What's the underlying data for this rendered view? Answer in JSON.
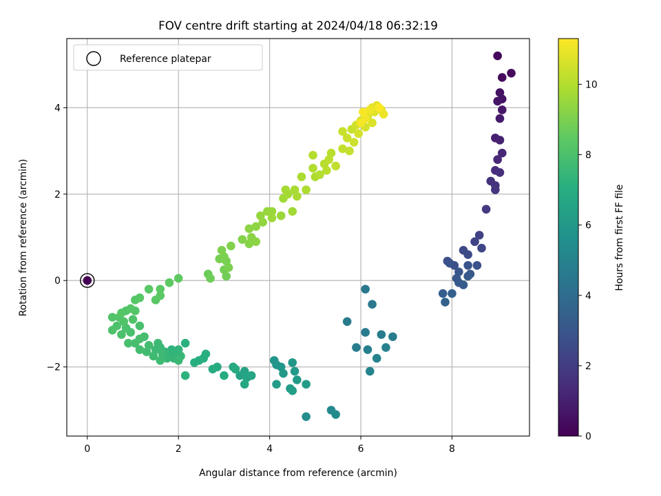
{
  "chart_data": {
    "type": "scatter",
    "title": "FOV centre drift starting at 2024/04/18 06:32:19",
    "xlabel": "Angular distance from reference (arcmin)",
    "ylabel": "Rotation from reference (arcmin)",
    "xlim": [
      -0.45,
      9.7
    ],
    "ylim": [
      -3.6,
      5.6
    ],
    "xticks": [
      0,
      2,
      4,
      6,
      8
    ],
    "yticks": [
      -2,
      0,
      2,
      4
    ],
    "xtick_labels": [
      "0",
      "2",
      "4",
      "6",
      "8"
    ],
    "ytick_labels": [
      "−2",
      "0",
      "2",
      "4"
    ],
    "grid": true,
    "legend": {
      "position": "top-left",
      "label": "Reference platepar"
    },
    "colorbar": {
      "label": "Hours from first FF file",
      "colormap": "viridis",
      "range": [
        0,
        11.3
      ],
      "ticks": [
        0,
        2,
        4,
        6,
        8,
        10
      ],
      "tick_labels": [
        "0",
        "2",
        "4",
        "6",
        "8",
        "10"
      ]
    },
    "reference_point": {
      "x": 0,
      "y": 0,
      "hours": 0
    },
    "points": [
      [
        9.0,
        5.2,
        0.2
      ],
      [
        9.3,
        4.8,
        0.3
      ],
      [
        9.1,
        4.7,
        0.35
      ],
      [
        9.05,
        4.35,
        0.5
      ],
      [
        9.1,
        4.2,
        0.6
      ],
      [
        9.0,
        4.15,
        0.65
      ],
      [
        9.1,
        3.95,
        0.75
      ],
      [
        9.05,
        3.75,
        0.85
      ],
      [
        8.95,
        3.3,
        1.0
      ],
      [
        9.05,
        3.25,
        1.05
      ],
      [
        9.1,
        2.95,
        1.2
      ],
      [
        9.0,
        2.8,
        1.3
      ],
      [
        8.95,
        2.55,
        1.4
      ],
      [
        9.05,
        2.5,
        1.5
      ],
      [
        8.85,
        2.3,
        1.6
      ],
      [
        8.95,
        2.2,
        1.65
      ],
      [
        8.95,
        2.1,
        1.7
      ],
      [
        8.75,
        1.65,
        1.9
      ],
      [
        8.6,
        1.05,
        2.2
      ],
      [
        8.5,
        0.9,
        2.3
      ],
      [
        8.65,
        0.75,
        2.35
      ],
      [
        8.25,
        0.7,
        2.5
      ],
      [
        8.35,
        0.6,
        2.55
      ],
      [
        7.9,
        0.45,
        2.7
      ],
      [
        8.05,
        0.35,
        2.75
      ],
      [
        8.55,
        0.35,
        2.8
      ],
      [
        7.95,
        0.4,
        2.85
      ],
      [
        8.35,
        0.35,
        2.9
      ],
      [
        8.15,
        0.2,
        3.0
      ],
      [
        8.4,
        0.15,
        3.05
      ],
      [
        8.1,
        0.05,
        3.1
      ],
      [
        8.35,
        0.1,
        3.15
      ],
      [
        8.15,
        -0.05,
        3.2
      ],
      [
        8.25,
        -0.1,
        3.25
      ],
      [
        7.8,
        -0.3,
        3.4
      ],
      [
        8.0,
        -0.3,
        3.45
      ],
      [
        7.85,
        -0.5,
        3.55
      ],
      [
        6.1,
        -0.2,
        4.5
      ],
      [
        6.25,
        -0.55,
        4.55
      ],
      [
        5.7,
        -0.95,
        4.6
      ],
      [
        6.1,
        -1.2,
        4.65
      ],
      [
        6.45,
        -1.25,
        4.7
      ],
      [
        6.7,
        -1.3,
        4.75
      ],
      [
        5.9,
        -1.55,
        4.8
      ],
      [
        6.15,
        -1.6,
        4.85
      ],
      [
        6.55,
        -1.55,
        4.9
      ],
      [
        6.35,
        -1.8,
        4.95
      ],
      [
        6.2,
        -2.1,
        5.0
      ],
      [
        5.35,
        -3.0,
        5.3
      ],
      [
        5.45,
        -3.1,
        5.35
      ],
      [
        4.8,
        -3.15,
        5.45
      ],
      [
        4.1,
        -1.85,
        5.8
      ],
      [
        4.15,
        -1.95,
        5.85
      ],
      [
        4.25,
        -2.0,
        5.9
      ],
      [
        4.5,
        -1.9,
        5.95
      ],
      [
        4.3,
        -2.15,
        6.0
      ],
      [
        4.55,
        -2.1,
        6.05
      ],
      [
        4.6,
        -2.3,
        6.1
      ],
      [
        4.8,
        -2.4,
        6.15
      ],
      [
        4.15,
        -2.4,
        6.2
      ],
      [
        4.45,
        -2.5,
        6.25
      ],
      [
        4.5,
        -2.55,
        6.3
      ],
      [
        3.35,
        -2.2,
        6.5
      ],
      [
        3.45,
        -2.1,
        6.55
      ],
      [
        3.5,
        -2.25,
        6.6
      ],
      [
        3.6,
        -2.2,
        6.65
      ],
      [
        3.45,
        -2.4,
        6.7
      ],
      [
        3.2,
        -2.0,
        6.75
      ],
      [
        3.25,
        -2.05,
        6.8
      ],
      [
        2.85,
        -2.0,
        6.85
      ],
      [
        3.0,
        -2.2,
        6.9
      ],
      [
        2.75,
        -2.05,
        6.95
      ],
      [
        2.45,
        -1.85,
        7.0
      ],
      [
        2.55,
        -1.8,
        7.05
      ],
      [
        2.6,
        -1.7,
        7.1
      ],
      [
        2.35,
        -1.9,
        7.1
      ],
      [
        2.15,
        -1.45,
        7.15
      ],
      [
        2.15,
        -2.2,
        7.2
      ],
      [
        1.85,
        -1.6,
        7.25
      ],
      [
        1.95,
        -1.65,
        7.3
      ],
      [
        2.0,
        -1.6,
        7.35
      ],
      [
        1.8,
        -1.7,
        7.35
      ],
      [
        1.9,
        -1.8,
        7.4
      ],
      [
        2.05,
        -1.75,
        7.45
      ],
      [
        1.7,
        -1.65,
        7.45
      ],
      [
        1.75,
        -1.8,
        7.5
      ],
      [
        2.0,
        -1.85,
        7.55
      ],
      [
        1.6,
        -1.55,
        7.55
      ],
      [
        1.65,
        -1.7,
        7.6
      ],
      [
        1.5,
        -1.6,
        7.65
      ],
      [
        1.55,
        -1.45,
        7.65
      ],
      [
        1.45,
        -1.75,
        7.7
      ],
      [
        1.6,
        -1.85,
        7.7
      ],
      [
        1.3,
        -1.65,
        7.75
      ],
      [
        1.35,
        -1.5,
        7.8
      ],
      [
        1.15,
        -1.6,
        7.8
      ],
      [
        1.25,
        -1.3,
        7.85
      ],
      [
        1.05,
        -1.45,
        7.85
      ],
      [
        1.15,
        -1.35,
        7.9
      ],
      [
        0.9,
        -1.45,
        7.9
      ],
      [
        0.95,
        -1.2,
        7.95
      ],
      [
        1.15,
        -1.05,
        7.95
      ],
      [
        0.85,
        -1.1,
        8.0
      ],
      [
        0.75,
        -1.25,
        8.0
      ],
      [
        0.55,
        -1.15,
        8.05
      ],
      [
        0.65,
        -1.05,
        8.05
      ],
      [
        0.8,
        -0.95,
        8.1
      ],
      [
        1.0,
        -0.9,
        8.1
      ],
      [
        0.7,
        -0.85,
        8.15
      ],
      [
        0.55,
        -0.85,
        8.15
      ],
      [
        0.85,
        -0.7,
        8.2
      ],
      [
        1.05,
        -0.7,
        8.2
      ],
      [
        0.95,
        -0.65,
        8.25
      ],
      [
        0.75,
        -0.75,
        8.25
      ],
      [
        1.05,
        -0.45,
        8.3
      ],
      [
        1.15,
        -0.4,
        8.3
      ],
      [
        1.35,
        -0.2,
        8.35
      ],
      [
        1.5,
        -0.45,
        8.35
      ],
      [
        1.6,
        -0.35,
        8.4
      ],
      [
        1.6,
        -0.2,
        8.4
      ],
      [
        1.8,
        -0.05,
        8.45
      ],
      [
        2.0,
        0.05,
        8.5
      ],
      [
        2.65,
        0.15,
        8.7
      ],
      [
        2.7,
        0.05,
        8.75
      ],
      [
        3.05,
        0.1,
        8.8
      ],
      [
        3.0,
        0.25,
        8.85
      ],
      [
        2.9,
        0.5,
        8.9
      ],
      [
        3.05,
        0.45,
        8.95
      ],
      [
        3.1,
        0.3,
        9.0
      ],
      [
        3.0,
        0.55,
        9.0
      ],
      [
        2.95,
        0.7,
        9.05
      ],
      [
        3.15,
        0.8,
        9.1
      ],
      [
        3.4,
        0.95,
        9.15
      ],
      [
        3.55,
        0.85,
        9.2
      ],
      [
        3.6,
        1.0,
        9.25
      ],
      [
        3.55,
        1.2,
        9.3
      ],
      [
        3.7,
        0.9,
        9.3
      ],
      [
        3.7,
        1.25,
        9.35
      ],
      [
        3.85,
        1.35,
        9.4
      ],
      [
        3.8,
        1.5,
        9.45
      ],
      [
        3.95,
        1.6,
        9.5
      ],
      [
        4.05,
        1.6,
        9.55
      ],
      [
        4.25,
        1.5,
        9.55
      ],
      [
        4.05,
        1.45,
        9.6
      ],
      [
        4.5,
        1.6,
        9.65
      ],
      [
        4.3,
        1.9,
        9.7
      ],
      [
        4.4,
        2.0,
        9.75
      ],
      [
        4.35,
        2.1,
        9.75
      ],
      [
        4.55,
        2.1,
        9.8
      ],
      [
        4.6,
        1.95,
        9.8
      ],
      [
        4.7,
        2.4,
        9.85
      ],
      [
        4.8,
        2.1,
        9.9
      ],
      [
        5.0,
        2.4,
        9.9
      ],
      [
        4.95,
        2.6,
        9.95
      ],
      [
        5.1,
        2.45,
        10.0
      ],
      [
        4.95,
        2.9,
        10.0
      ],
      [
        5.2,
        2.7,
        10.05
      ],
      [
        5.25,
        2.55,
        10.1
      ],
      [
        5.35,
        2.95,
        10.1
      ],
      [
        5.3,
        2.8,
        10.15
      ],
      [
        5.45,
        2.65,
        10.2
      ],
      [
        5.6,
        3.05,
        10.25
      ],
      [
        5.75,
        3.0,
        10.3
      ],
      [
        5.6,
        3.45,
        10.35
      ],
      [
        5.8,
        3.5,
        10.35
      ],
      [
        5.7,
        3.3,
        10.4
      ],
      [
        5.85,
        3.2,
        10.45
      ],
      [
        5.9,
        3.6,
        10.5
      ],
      [
        6.0,
        3.7,
        10.55
      ],
      [
        5.95,
        3.4,
        10.6
      ],
      [
        6.1,
        3.55,
        10.6
      ],
      [
        6.15,
        3.8,
        10.65
      ],
      [
        6.25,
        3.65,
        10.7
      ],
      [
        6.3,
        3.9,
        10.75
      ],
      [
        6.25,
        4.0,
        10.8
      ],
      [
        6.35,
        4.05,
        10.85
      ],
      [
        6.45,
        3.95,
        10.9
      ],
      [
        6.5,
        3.85,
        11.0
      ],
      [
        6.2,
        3.95,
        11.05
      ],
      [
        6.1,
        3.75,
        11.1
      ],
      [
        6.0,
        3.65,
        11.15
      ],
      [
        6.05,
        3.9,
        11.2
      ],
      [
        6.4,
        4.0,
        11.25
      ]
    ]
  }
}
